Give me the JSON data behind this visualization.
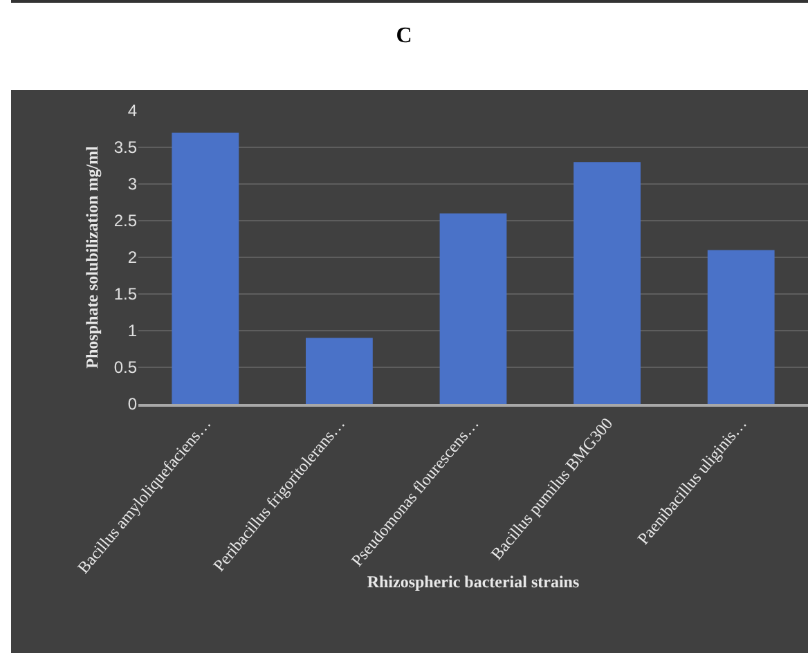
{
  "chart_data": {
    "type": "bar",
    "title": "C",
    "xlabel": "Rhizospheric bacterial strains",
    "ylabel": "Phosphate solubilization mg/ml",
    "categories": [
      "Bacillus amyloliquefaciens…",
      "Peribacillus frigoritolerans…",
      "Pseudomonas flourescens…",
      "Bacillus pumilus BMG300",
      "Paenibacillus uliginis…"
    ],
    "values": [
      3.7,
      0.9,
      2.6,
      3.3,
      2.1
    ],
    "color": "#4a72c8",
    "ylim": [
      0,
      4
    ],
    "yticks": [
      0,
      0.5,
      1,
      1.5,
      2,
      2.5,
      3,
      3.5,
      4
    ],
    "grid": "y"
  }
}
